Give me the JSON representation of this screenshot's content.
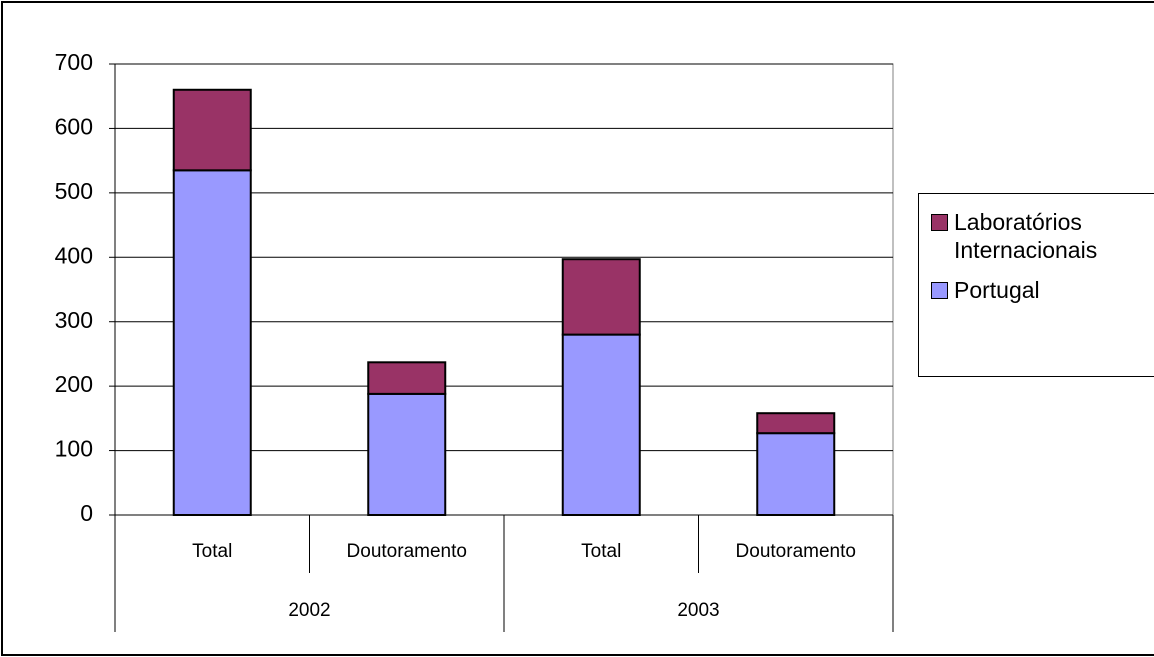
{
  "chart_data": {
    "type": "stacked-bar",
    "categories": [
      "Total",
      "Doutoramento",
      "Total",
      "Doutoramento"
    ],
    "groups": [
      "2002",
      "2003"
    ],
    "series": [
      {
        "name": "Portugal",
        "color": "#9999ff",
        "values": [
          535,
          188,
          280,
          127
        ]
      },
      {
        "name": "Laboratórios Internacionais",
        "color": "#993366",
        "values": [
          125,
          49,
          117,
          31
        ]
      }
    ],
    "ylim": [
      0,
      700
    ],
    "yticks": [
      0,
      100,
      200,
      300,
      400,
      500,
      600,
      700
    ],
    "grid": true,
    "legend": "right"
  }
}
